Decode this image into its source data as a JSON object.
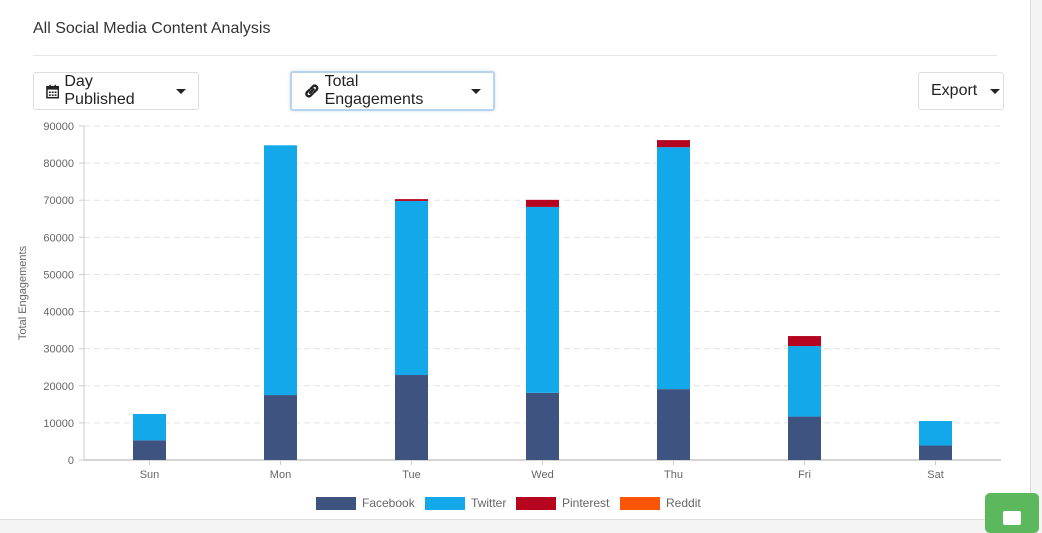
{
  "header": {
    "title": "All Social Media Content Analysis"
  },
  "toolbar": {
    "group_by_label": "Day Published",
    "group_by_icon": "calendar-icon",
    "metric_label": "Total Engagements",
    "metric_icon": "link-icon",
    "export_label": "Export"
  },
  "chart_data": {
    "type": "bar",
    "stacked": true,
    "title": "",
    "xlabel": "",
    "ylabel": "Total Engagements",
    "ylim": [
      0,
      90000
    ],
    "yticks": [
      "0",
      "10000",
      "20000",
      "30000",
      "40000",
      "50000",
      "60000",
      "70000",
      "80000",
      "90000"
    ],
    "grid": true,
    "legend": "bottom",
    "categories": [
      "Sun",
      "Mon",
      "Tue",
      "Wed",
      "Thu",
      "Fri",
      "Sat"
    ],
    "series": [
      {
        "name": "Facebook",
        "color": "#3f5381",
        "values": [
          5300,
          17500,
          22900,
          18100,
          19100,
          11700,
          3900
        ]
      },
      {
        "name": "Twitter",
        "color": "#13a8ea",
        "values": [
          7100,
          67300,
          46900,
          50100,
          65200,
          19000,
          6600
        ]
      },
      {
        "name": "Pinterest",
        "color": "#b5051f",
        "values": [
          0,
          0,
          500,
          1900,
          1900,
          2700,
          0
        ]
      },
      {
        "name": "Reddit",
        "color": "#fb5607",
        "values": [
          0,
          0,
          0,
          0,
          0,
          0,
          0
        ]
      }
    ]
  }
}
